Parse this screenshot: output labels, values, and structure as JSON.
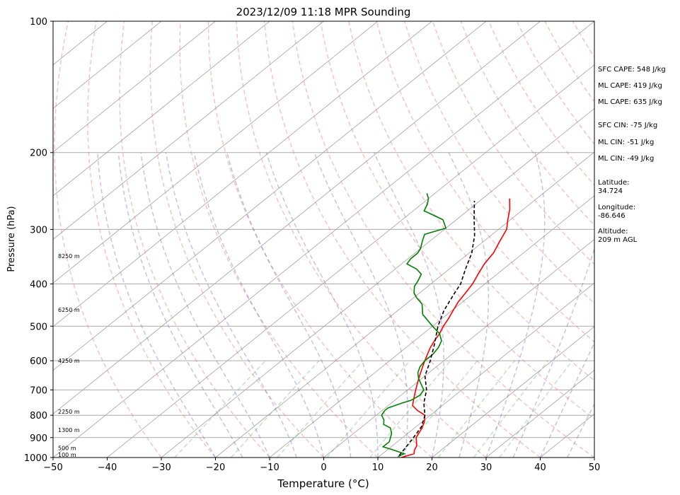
{
  "chart_data": {
    "type": "line",
    "title": "2023/12/09 11:18 MPR Sounding",
    "xlabel": "Temperature (°C)",
    "ylabel": "Pressure (hPa)",
    "xlim": [
      -50,
      50
    ],
    "ylim": [
      1000,
      100
    ],
    "y_scale": "log",
    "skew_t": true,
    "grid": true,
    "x_ticks": [
      "−50",
      "−40",
      "−30",
      "−20",
      "−10",
      "0",
      "10",
      "20",
      "30",
      "40",
      "50"
    ],
    "y_ticks": [
      "100",
      "200",
      "300",
      "400",
      "500",
      "600",
      "700",
      "800",
      "900",
      "1000"
    ],
    "height_labels": [
      {
        "p": 985,
        "text": "100 m"
      },
      {
        "p": 950,
        "text": "500 m"
      },
      {
        "p": 865,
        "text": "1300 m"
      },
      {
        "p": 785,
        "text": "2250 m"
      },
      {
        "p": 600,
        "text": "4250 m"
      },
      {
        "p": 458,
        "text": "6250 m"
      },
      {
        "p": 345,
        "text": "8250 m"
      }
    ],
    "series": [
      {
        "name": "",
        "role": "temperature",
        "color": "#ff0000",
        "points": [
          [
            14.3,
            1000
          ],
          [
            15.8,
            980
          ],
          [
            15.0,
            960
          ],
          [
            14.5,
            940
          ],
          [
            13.5,
            920
          ],
          [
            12.5,
            900
          ],
          [
            11.5,
            860
          ],
          [
            10.5,
            830
          ],
          [
            9.0,
            800
          ],
          [
            6.5,
            780
          ],
          [
            4.5,
            760
          ],
          [
            3.5,
            740
          ],
          [
            2.5,
            720
          ],
          [
            1.5,
            700
          ],
          [
            0.5,
            680
          ],
          [
            -0.5,
            660
          ],
          [
            -1.5,
            640
          ],
          [
            -2.5,
            620
          ],
          [
            -3.5,
            600
          ],
          [
            -4.5,
            580
          ],
          [
            -5.5,
            560
          ],
          [
            -6.3,
            540
          ],
          [
            -7.0,
            520
          ],
          [
            -8.0,
            500
          ],
          [
            -8.8,
            480
          ],
          [
            -9.8,
            460
          ],
          [
            -10.8,
            440
          ],
          [
            -11.5,
            420
          ],
          [
            -12.3,
            400
          ],
          [
            -13.5,
            380
          ],
          [
            -14.7,
            360
          ],
          [
            -15.5,
            340
          ],
          [
            -17.0,
            320
          ],
          [
            -18.5,
            300
          ],
          [
            -20.5,
            285
          ],
          [
            -22.5,
            270
          ],
          [
            -25.0,
            255
          ]
        ]
      },
      {
        "name": "",
        "role": "dewpoint",
        "color": "#008000",
        "points": [
          [
            13.5,
            995
          ],
          [
            14.0,
            980
          ],
          [
            11.0,
            960
          ],
          [
            8.5,
            945
          ],
          [
            8.5,
            920
          ],
          [
            7.0,
            880
          ],
          [
            5.5,
            855
          ],
          [
            3.5,
            840
          ],
          [
            2.5,
            820
          ],
          [
            1.0,
            800
          ],
          [
            0.5,
            780
          ],
          [
            0.5,
            770
          ],
          [
            2.0,
            750
          ],
          [
            3.0,
            740
          ],
          [
            3.5,
            720
          ],
          [
            3.0,
            700
          ],
          [
            -0.5,
            660
          ],
          [
            -2.0,
            640
          ],
          [
            -3.0,
            620
          ],
          [
            -3.5,
            600
          ],
          [
            -3.5,
            580
          ],
          [
            -4.0,
            560
          ],
          [
            -5.0,
            540
          ],
          [
            -7.0,
            520
          ],
          [
            -10.0,
            500
          ],
          [
            -14.5,
            470
          ],
          [
            -17.0,
            445
          ],
          [
            -19.5,
            430
          ],
          [
            -21.0,
            420
          ],
          [
            -22.5,
            405
          ],
          [
            -23.0,
            395
          ],
          [
            -24.0,
            380
          ],
          [
            -26.0,
            370
          ],
          [
            -29.0,
            360
          ],
          [
            -29.5,
            350
          ],
          [
            -29.5,
            340
          ],
          [
            -30.0,
            332
          ],
          [
            -31.5,
            318
          ],
          [
            -32.5,
            308
          ],
          [
            -30.0,
            298
          ],
          [
            -32.5,
            285
          ],
          [
            -38.0,
            272
          ],
          [
            -39.0,
            262
          ],
          [
            -40.0,
            255
          ],
          [
            -41.5,
            248
          ]
        ]
      },
      {
        "name": "",
        "role": "parcel",
        "color": "#000000",
        "dashed": true,
        "points": [
          [
            13.5,
            990
          ],
          [
            12.0,
            900
          ],
          [
            11.0,
            850
          ],
          [
            9.0,
            800
          ],
          [
            6.0,
            750
          ],
          [
            3.5,
            700
          ],
          [
            0.0,
            650
          ],
          [
            -2.5,
            600
          ],
          [
            -5.5,
            550
          ],
          [
            -9.0,
            500
          ],
          [
            -11.5,
            460
          ],
          [
            -13.5,
            420
          ],
          [
            -14.5,
            400
          ],
          [
            -17.0,
            370
          ],
          [
            -19.5,
            340
          ],
          [
            -23.0,
            310
          ],
          [
            -27.5,
            280
          ],
          [
            -31.0,
            258
          ]
        ]
      }
    ]
  },
  "side_info": {
    "sfc_cape": "SFC CAPE: 548 J/kg",
    "ml_cape_1": "ML CAPE: 419 J/kg",
    "ml_cape_2": "ML CAPE: 635 J/kg",
    "sfc_cin": "SFC CIN: -75 J/kg",
    "ml_cin_1": "ML CIN: -51 J/kg",
    "ml_cin_2": "ML CIN: -49 J/kg",
    "latitude": "Latitude:\n34.724",
    "longitude": "Longitude:\n-86.646",
    "altitude": "Altitude:\n209 m AGL"
  }
}
